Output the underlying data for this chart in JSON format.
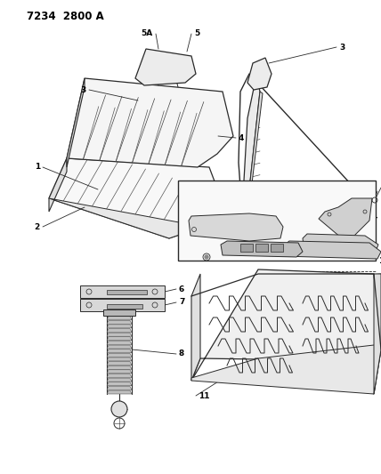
{
  "title": "7234  2800 A",
  "bg_color": "#ffffff",
  "line_color": "#2a2a2a",
  "label_color": "#000000",
  "title_fontsize": 8.5,
  "label_fontsize": 6.5,
  "fig_width": 4.28,
  "fig_height": 5.33,
  "dpi": 100
}
